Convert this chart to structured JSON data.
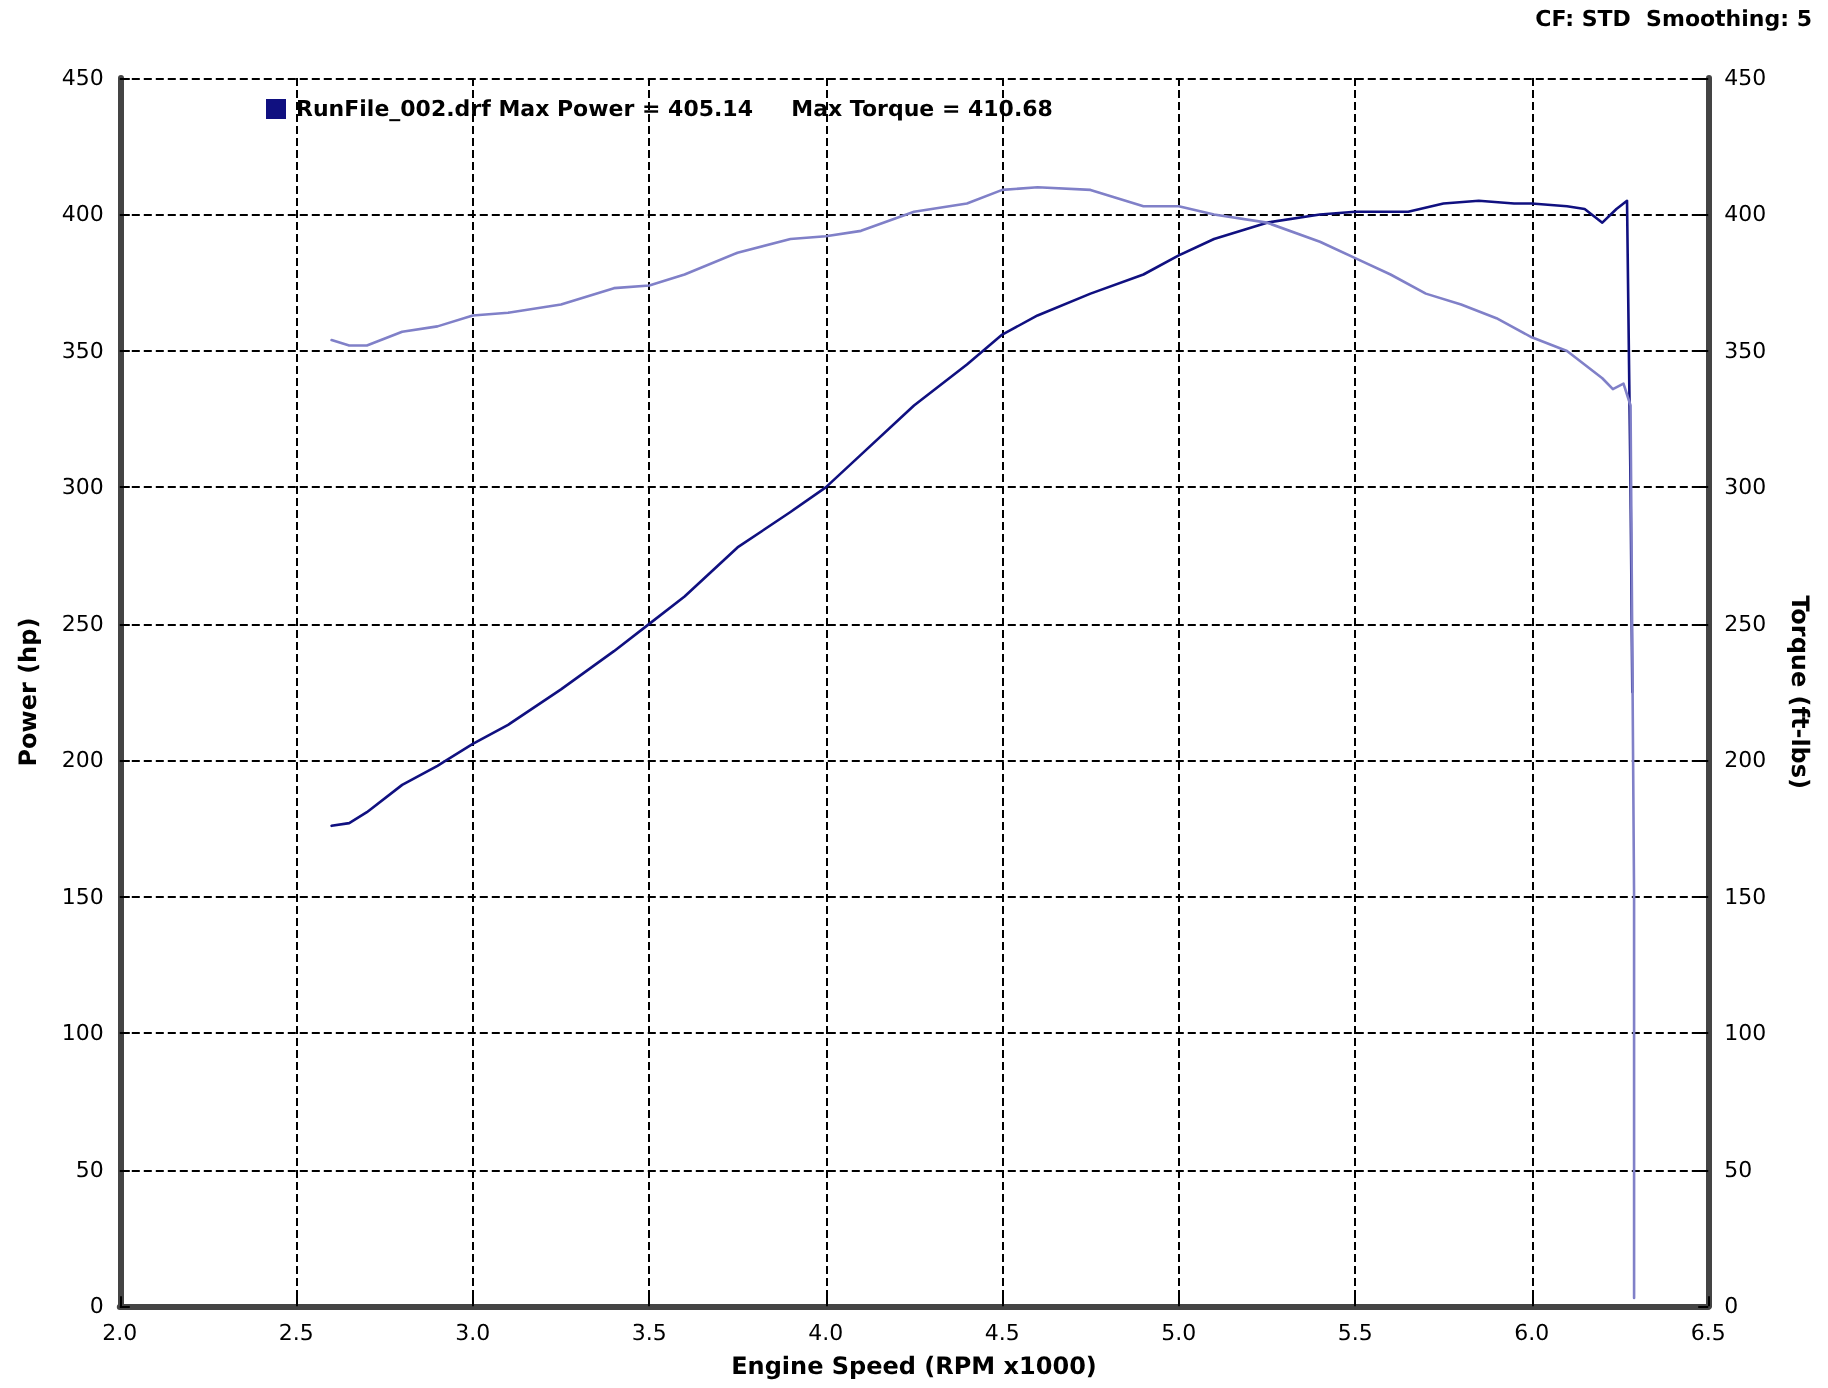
{
  "chart_data": {
    "type": "line",
    "xlabel": "Engine Speed (RPM x1000)",
    "ylabel": "Power (hp)",
    "y2label": "Torque (ft-lbs)",
    "annotations": [
      "CF: STD  Smoothing: 5"
    ],
    "xlim": [
      2.0,
      6.5
    ],
    "xticks": [
      {
        "value": 2,
        "label": "2.0"
      },
      2.5,
      {
        "value": 3,
        "label": "3.0"
      },
      3.5,
      {
        "value": 4,
        "label": "4.0"
      },
      4.5,
      {
        "value": 5,
        "label": "5.0"
      },
      5.5,
      {
        "value": 6,
        "label": "6.0"
      },
      6.5
    ],
    "ylim": [
      0,
      450
    ],
    "yticks": [
      0,
      50,
      100,
      150,
      200,
      250,
      300,
      350,
      400,
      450
    ],
    "y2lim": [
      0,
      450
    ],
    "y2ticks": [
      0,
      50,
      100,
      150,
      200,
      250,
      300,
      350,
      400,
      450
    ],
    "grid": true,
    "legend": "top left",
    "marker": "none",
    "line_style": "solid",
    "series": [
      {
        "name": "RunFile_002.drf Max Power = 405.14     Max Torque = 410.68",
        "color": "#101080",
        "x": [
          2.6,
          2.65,
          2.7,
          2.8,
          2.9,
          3.0,
          3.1,
          3.25,
          3.4,
          3.5,
          3.6,
          3.75,
          3.9,
          4.0,
          4.1,
          4.25,
          4.4,
          4.5,
          4.6,
          4.75,
          4.9,
          5.0,
          5.1,
          5.25,
          5.4,
          5.5,
          5.6,
          5.65,
          5.75,
          5.85,
          5.95,
          6.0,
          6.1,
          6.15,
          6.2,
          6.24,
          6.27,
          6.28,
          6.285
        ],
        "values": [
          176,
          177,
          181,
          191,
          198,
          206,
          213,
          226,
          240,
          250,
          260,
          278,
          291,
          300,
          312,
          330,
          345,
          356,
          363,
          371,
          378,
          385,
          391,
          397,
          400,
          401,
          401,
          401,
          404,
          405,
          404,
          404,
          403,
          402,
          397,
          402,
          405,
          300,
          225
        ]
      },
      {
        "color": "#8080c8",
        "axis": "y2",
        "x": [
          2.6,
          2.65,
          2.7,
          2.8,
          2.9,
          3.0,
          3.1,
          3.25,
          3.4,
          3.5,
          3.6,
          3.75,
          3.9,
          4.0,
          4.1,
          4.25,
          4.4,
          4.5,
          4.6,
          4.75,
          4.9,
          5.0,
          5.1,
          5.25,
          5.4,
          5.5,
          5.6,
          5.7,
          5.8,
          5.9,
          6.0,
          6.1,
          6.2,
          6.23,
          6.26,
          6.28,
          6.29,
          6.29
        ],
        "values": [
          354,
          352,
          352,
          357,
          359,
          363,
          364,
          367,
          373,
          374,
          378,
          386,
          391,
          392,
          394,
          401,
          404,
          409,
          410,
          409,
          403,
          403,
          400,
          397,
          390,
          384,
          378,
          371,
          367,
          362,
          355,
          350,
          340,
          336,
          338,
          330,
          150,
          3
        ]
      }
    ]
  }
}
